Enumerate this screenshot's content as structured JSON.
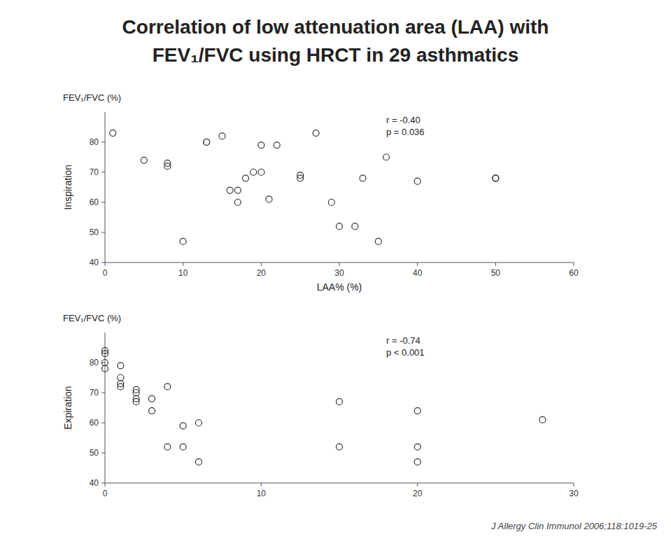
{
  "title": "Correlation of low attenuation area (LAA) with",
  "subtitle": "FEV₁/FVC using HRCT in 29 asthmatics",
  "annotation": "J Allergy Clin Immunol 2006;118:1019-25",
  "chart_data": [
    {
      "type": "scatter",
      "title": "FEV₁/FVC (%)",
      "xlabel": "LAA% (%)",
      "ylabel": "Inspiration",
      "x": [
        1,
        5,
        8,
        8,
        10,
        13,
        13,
        15,
        16,
        17,
        17,
        18,
        19,
        20,
        20,
        21,
        22,
        25,
        25,
        27,
        29,
        30,
        32,
        33,
        35,
        36,
        40,
        50,
        50
      ],
      "values": [
        83,
        74,
        73,
        72,
        47,
        80,
        80,
        82,
        64,
        64,
        60,
        68,
        70,
        79,
        70,
        61,
        79,
        69,
        68,
        83,
        60,
        52,
        52,
        68,
        47,
        75,
        67,
        68,
        68
      ],
      "xlim": [
        0,
        60
      ],
      "ylim": [
        40,
        90
      ],
      "xticks": [
        0,
        10,
        20,
        30,
        40,
        50,
        60
      ],
      "yticks": [
        40,
        50,
        60,
        70,
        80
      ],
      "annotations": [
        "r = -0.40",
        "p = 0.036"
      ],
      "color": "#333333",
      "marker": "circle"
    },
    {
      "type": "scatter",
      "title": "FEV₁/FVC (%)",
      "ylabel": "Expiration",
      "x": [
        0,
        0,
        0,
        0,
        1,
        1,
        1,
        1,
        2,
        2,
        2,
        2,
        3,
        3,
        4,
        4,
        5,
        5,
        6,
        6,
        15,
        15,
        20,
        20,
        20,
        28
      ],
      "values": [
        84,
        83,
        80,
        78,
        79,
        75,
        73,
        72,
        71,
        70,
        68,
        67,
        68,
        64,
        72,
        52,
        59,
        52,
        60,
        47,
        67,
        52,
        64,
        52,
        47,
        61
      ],
      "xlim": [
        0,
        30
      ],
      "ylim": [
        40,
        90
      ],
      "xticks": [
        0,
        10,
        20,
        30
      ],
      "yticks": [
        40,
        50,
        60,
        70,
        80
      ],
      "annotations": [
        "r = -0.74",
        "p < 0.001"
      ],
      "color": "#333333",
      "marker": "circle"
    }
  ]
}
